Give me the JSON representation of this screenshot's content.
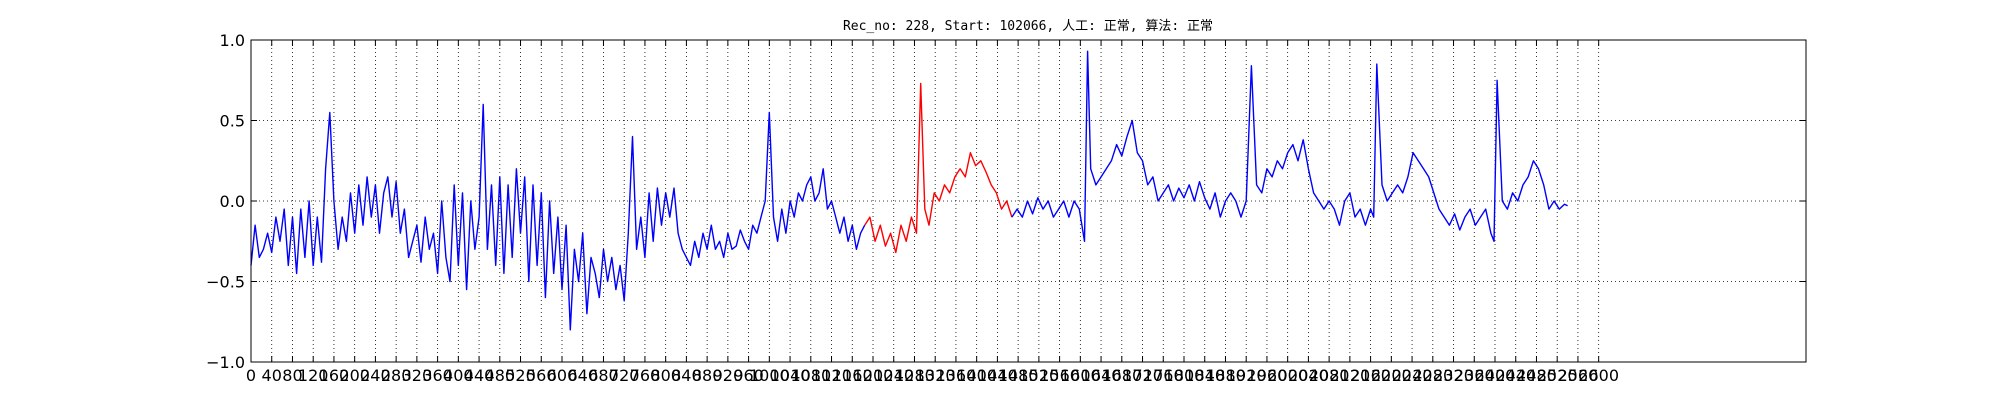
{
  "chart_data": {
    "type": "line",
    "title": "Rec_no: 228, Start: 102066, 人工: 正常, 算法: 正常",
    "xlabel": "",
    "ylabel": "",
    "xlim": [
      0,
      3000
    ],
    "ylim": [
      -1.0,
      1.0
    ],
    "grid": true,
    "yticks": [
      1.0,
      0.5,
      0.0,
      -0.5,
      -1.0
    ],
    "ytick_labels": [
      "1.0",
      "0.5",
      "0.0",
      "−0.5",
      "−1.0"
    ],
    "xticks": [
      0,
      40,
      80,
      120,
      160,
      200,
      240,
      280,
      320,
      360,
      400,
      440,
      480,
      520,
      560,
      600,
      640,
      680,
      720,
      760,
      800,
      840,
      880,
      920,
      960,
      1000,
      1040,
      1080,
      1120,
      1160,
      1200,
      1240,
      1280,
      1320,
      1360,
      1400,
      1440,
      1480,
      1520,
      1560,
      1600,
      1640,
      1680,
      1720,
      1760,
      1800,
      1840,
      1880,
      1920,
      1960,
      2000,
      2040,
      2080,
      2120,
      2160,
      2200,
      2240,
      2280,
      2320,
      2360,
      2400,
      2440,
      2480,
      2520,
      2560,
      2600
    ],
    "series": [
      {
        "color": "#0000ff",
        "x": [
          0,
          8,
          16,
          24,
          32,
          40,
          48,
          56,
          64,
          72,
          80,
          88,
          96,
          104,
          112,
          120,
          128,
          136,
          144,
          152,
          160,
          168,
          176,
          184,
          192,
          200,
          208,
          216,
          224,
          232,
          240,
          248,
          256,
          264,
          272,
          280,
          288,
          296,
          304,
          312,
          320,
          328,
          336,
          344,
          352,
          360,
          368,
          376,
          384,
          392,
          400,
          408,
          416,
          424,
          432,
          440,
          448,
          456,
          464,
          472,
          480,
          488,
          496,
          504,
          512,
          520,
          528,
          536,
          544,
          552,
          560,
          568,
          576,
          584,
          592,
          600,
          608,
          616,
          624,
          632,
          640,
          648,
          656,
          664,
          672,
          680,
          688,
          696,
          704,
          712,
          720,
          728,
          736,
          744,
          752,
          760,
          768,
          776,
          784,
          792,
          800,
          808,
          816,
          824,
          832,
          840,
          848,
          856,
          864,
          872,
          880,
          888,
          896,
          904,
          912,
          920,
          928,
          936,
          944,
          952,
          960,
          968,
          976,
          984,
          992,
          1000,
          1008,
          1016,
          1024,
          1032,
          1040,
          1048,
          1056,
          1064,
          1072,
          1080,
          1088,
          1096,
          1104,
          1112,
          1120,
          1128,
          1136,
          1144,
          1152,
          1160,
          1168,
          1176,
          1184
        ],
        "y": [
          -0.4,
          -0.15,
          -0.35,
          -0.3,
          -0.2,
          -0.32,
          -0.1,
          -0.25,
          -0.05,
          -0.4,
          -0.1,
          -0.45,
          -0.05,
          -0.35,
          0.0,
          -0.4,
          -0.1,
          -0.38,
          0.2,
          0.55,
          0.0,
          -0.3,
          -0.1,
          -0.25,
          0.05,
          -0.2,
          0.1,
          -0.15,
          0.15,
          -0.1,
          0.1,
          -0.2,
          0.05,
          0.15,
          -0.1,
          0.12,
          -0.2,
          -0.05,
          -0.35,
          -0.25,
          -0.15,
          -0.38,
          -0.1,
          -0.3,
          -0.2,
          -0.45,
          0.0,
          -0.35,
          -0.5,
          0.1,
          -0.4,
          0.05,
          -0.55,
          0.0,
          -0.3,
          -0.1,
          0.6,
          -0.3,
          0.1,
          -0.4,
          0.15,
          -0.45,
          0.1,
          -0.35,
          0.2,
          -0.2,
          0.15,
          -0.5,
          0.1,
          -0.4,
          0.05,
          -0.6,
          0.0,
          -0.45,
          -0.1,
          -0.55,
          -0.15,
          -0.8,
          -0.3,
          -0.5,
          -0.2,
          -0.7,
          -0.35,
          -0.45,
          -0.6,
          -0.3,
          -0.5,
          -0.35,
          -0.55,
          -0.4,
          -0.62,
          -0.2,
          0.4,
          -0.3,
          -0.1,
          -0.35,
          0.05,
          -0.25,
          0.08,
          -0.15,
          0.05,
          -0.1,
          0.08,
          -0.2,
          -0.3,
          -0.35,
          -0.4,
          -0.25,
          -0.35,
          -0.2,
          -0.3,
          -0.15,
          -0.3,
          -0.25,
          -0.35,
          -0.2,
          -0.3,
          -0.28,
          -0.18,
          -0.25,
          -0.3,
          -0.15,
          -0.2,
          -0.1,
          0.0,
          0.55,
          -0.1,
          -0.25,
          -0.05,
          -0.2,
          0.0,
          -0.1,
          0.05,
          0.0,
          0.1,
          0.15,
          0.0,
          0.05,
          0.2,
          -0.05,
          0.0,
          -0.1,
          -0.2,
          -0.1,
          -0.25,
          -0.15,
          -0.3,
          -0.2,
          -0.15
        ]
      },
      {
        "color": "#ff0000",
        "x": [
          1184,
          1194,
          1204,
          1214,
          1224,
          1234,
          1244,
          1254,
          1264,
          1274,
          1284,
          1292,
          1300,
          1308,
          1318,
          1328,
          1338,
          1348,
          1358,
          1368,
          1378,
          1388,
          1398,
          1408,
          1418,
          1428,
          1438,
          1448,
          1458,
          1468
        ],
        "y": [
          -0.15,
          -0.1,
          -0.25,
          -0.15,
          -0.28,
          -0.2,
          -0.32,
          -0.15,
          -0.25,
          -0.1,
          -0.2,
          0.73,
          -0.05,
          -0.15,
          0.05,
          0.0,
          0.1,
          0.05,
          0.15,
          0.2,
          0.15,
          0.3,
          0.22,
          0.25,
          0.18,
          0.1,
          0.05,
          -0.05,
          0.0,
          -0.1
        ]
      },
      {
        "color": "#0000ff",
        "x": [
          1468,
          1478,
          1488,
          1498,
          1508,
          1518,
          1528,
          1538,
          1548,
          1558,
          1568,
          1578,
          1588,
          1598,
          1608,
          1614,
          1620,
          1630,
          1640,
          1650,
          1660,
          1670,
          1680,
          1690,
          1700,
          1710,
          1720,
          1730,
          1740,
          1750,
          1760,
          1770,
          1780,
          1790,
          1800,
          1810,
          1820,
          1830,
          1840,
          1850,
          1860,
          1870,
          1880,
          1890,
          1900,
          1910,
          1920,
          1930,
          1940,
          1950,
          1960,
          1970,
          1980,
          1990,
          2000,
          2010,
          2020,
          2030,
          2040,
          2050,
          2060,
          2070,
          2080,
          2090,
          2100,
          2110,
          2120,
          2130,
          2140,
          2150,
          2160,
          2166,
          2172,
          2182,
          2192,
          2202,
          2212,
          2222,
          2232,
          2242,
          2252,
          2262,
          2272,
          2282,
          2292,
          2302,
          2312,
          2322,
          2332,
          2342,
          2352,
          2362,
          2372,
          2382,
          2392,
          2398,
          2404,
          2414,
          2424,
          2434,
          2444,
          2454,
          2464,
          2474,
          2484,
          2494,
          2504,
          2514,
          2524,
          2534,
          2540
        ],
        "y": [
          -0.1,
          -0.05,
          -0.1,
          0.0,
          -0.08,
          0.02,
          -0.05,
          0.0,
          -0.1,
          -0.05,
          0.0,
          -0.1,
          0.0,
          -0.05,
          -0.25,
          0.93,
          0.2,
          0.1,
          0.15,
          0.2,
          0.25,
          0.35,
          0.28,
          0.4,
          0.5,
          0.3,
          0.25,
          0.1,
          0.15,
          0.0,
          0.05,
          0.1,
          0.0,
          0.08,
          0.02,
          0.1,
          0.0,
          0.12,
          0.02,
          -0.05,
          0.05,
          -0.1,
          0.0,
          0.05,
          0.0,
          -0.1,
          0.0,
          0.84,
          0.1,
          0.05,
          0.2,
          0.15,
          0.25,
          0.2,
          0.3,
          0.35,
          0.25,
          0.38,
          0.2,
          0.05,
          0.0,
          -0.05,
          0.0,
          -0.05,
          -0.15,
          0.0,
          0.05,
          -0.1,
          -0.05,
          -0.15,
          -0.05,
          -0.1,
          0.85,
          0.1,
          0.0,
          0.05,
          0.1,
          0.05,
          0.15,
          0.3,
          0.25,
          0.2,
          0.15,
          0.05,
          -0.05,
          -0.1,
          -0.15,
          -0.08,
          -0.18,
          -0.1,
          -0.05,
          -0.15,
          -0.1,
          -0.05,
          -0.2,
          -0.25,
          0.75,
          0.0,
          -0.05,
          0.05,
          0.0,
          0.1,
          0.15,
          0.25,
          0.2,
          0.1,
          -0.05,
          0.0,
          -0.05,
          -0.02,
          -0.03
        ]
      }
    ]
  }
}
